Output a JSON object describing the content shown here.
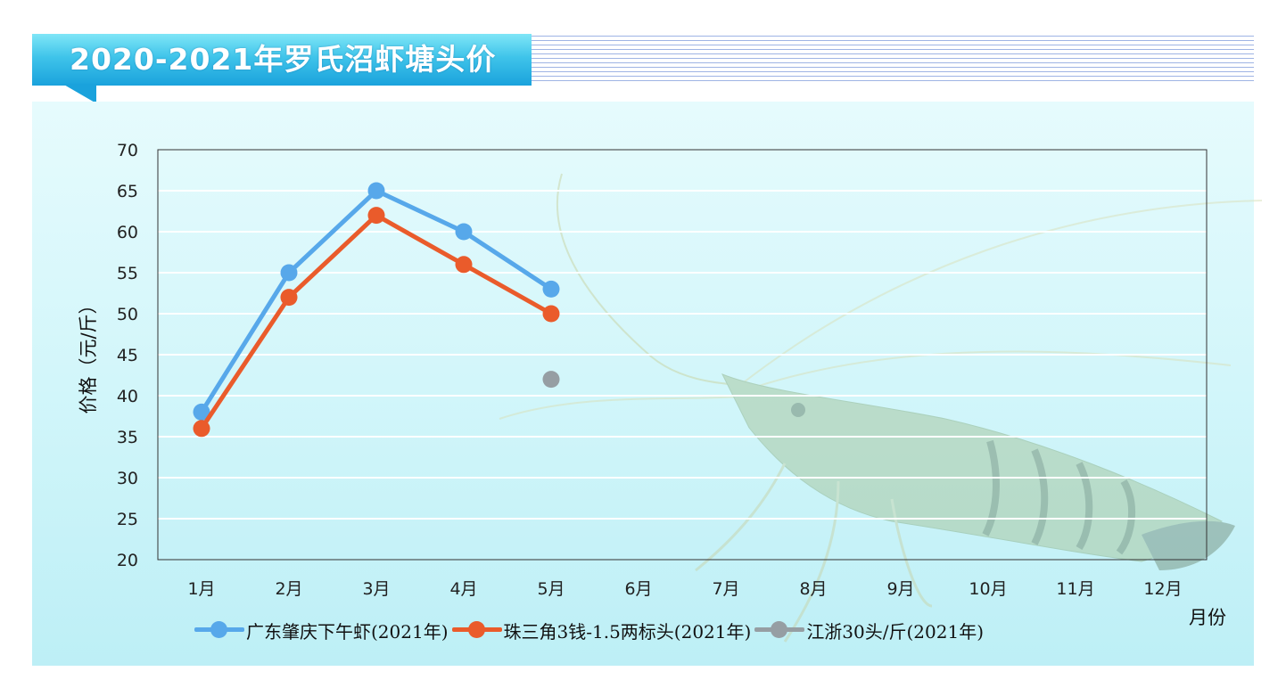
{
  "header": {
    "title": "2020-2021年罗氏沼虾塘头价"
  },
  "colors": {
    "banner": "#1aa2dc",
    "panel_background": "#d2f6fa",
    "gridline": "#ffffff",
    "series_blue": "#57a8ea",
    "series_orange": "#ea5b2b",
    "series_gray": "#969ea3"
  },
  "chart_data": {
    "type": "line",
    "title": "2020-2021年罗氏沼虾塘头价",
    "xlabel": "月份",
    "ylabel": "价格（元/斤）",
    "categories": [
      "1月",
      "2月",
      "3月",
      "4月",
      "5月",
      "6月",
      "7月",
      "8月",
      "9月",
      "10月",
      "11月",
      "12月"
    ],
    "ylim": [
      20,
      70
    ],
    "yticks": [
      20,
      25,
      30,
      35,
      40,
      45,
      50,
      55,
      60,
      65,
      70
    ],
    "grid": true,
    "legend_position": "bottom",
    "series": [
      {
        "name": "广东肇庆下午虾(2021年)",
        "color": "#57a8ea",
        "values": [
          38,
          55,
          65,
          60,
          53,
          null,
          null,
          null,
          null,
          null,
          null,
          null
        ]
      },
      {
        "name": "珠三角3钱-1.5两标头(2021年)",
        "color": "#ea5b2b",
        "values": [
          36,
          52,
          62,
          56,
          50,
          null,
          null,
          null,
          null,
          null,
          null,
          null
        ]
      },
      {
        "name": "江浙30头/斤(2021年)",
        "color": "#969ea3",
        "values": [
          null,
          null,
          null,
          null,
          42,
          null,
          null,
          null,
          null,
          null,
          null,
          null
        ]
      }
    ]
  }
}
